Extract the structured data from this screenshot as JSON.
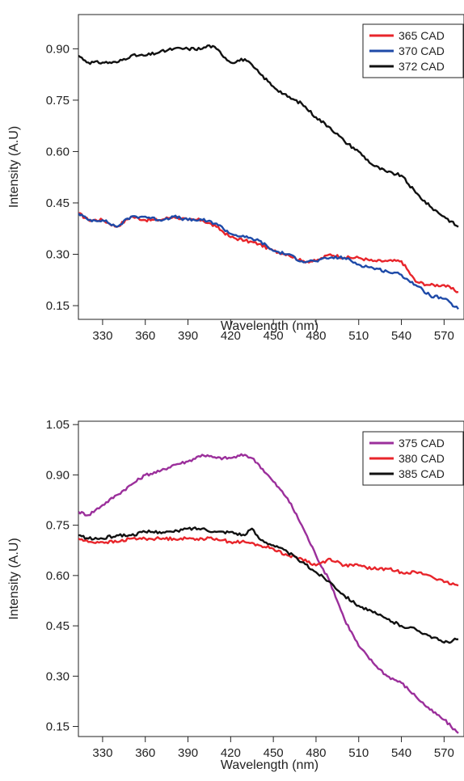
{
  "chart_data": [
    {
      "type": "line",
      "xlabel": "Wavelength (nm)",
      "ylabel": "Intensity (A.U)",
      "xlim": [
        313,
        584
      ],
      "ylim": [
        0.11,
        1.0
      ],
      "x_ticks": [
        "330",
        "360",
        "390",
        "420",
        "450",
        "480",
        "510",
        "540",
        "570"
      ],
      "y_ticks": [
        "0.15",
        "0.30",
        "0.45",
        "0.60",
        "0.75",
        "0.90"
      ],
      "legend_position": "top-right",
      "series": [
        {
          "name": "365 CAD",
          "color": "#e8252b",
          "x": [
            313,
            320,
            330,
            340,
            350,
            360,
            370,
            380,
            390,
            400,
            410,
            420,
            430,
            440,
            450,
            460,
            470,
            480,
            490,
            500,
            510,
            520,
            530,
            540,
            550,
            560,
            570,
            580
          ],
          "y": [
            0.42,
            0.4,
            0.4,
            0.38,
            0.41,
            0.4,
            0.4,
            0.41,
            0.4,
            0.4,
            0.38,
            0.35,
            0.34,
            0.33,
            0.31,
            0.3,
            0.28,
            0.28,
            0.3,
            0.29,
            0.29,
            0.28,
            0.28,
            0.28,
            0.22,
            0.21,
            0.21,
            0.19
          ]
        },
        {
          "name": "370 CAD",
          "color": "#1e4aa8",
          "x": [
            313,
            320,
            330,
            340,
            350,
            360,
            370,
            380,
            390,
            400,
            410,
            420,
            430,
            440,
            450,
            460,
            470,
            480,
            490,
            500,
            510,
            520,
            530,
            540,
            550,
            560,
            570,
            580
          ],
          "y": [
            0.42,
            0.4,
            0.4,
            0.38,
            0.41,
            0.41,
            0.4,
            0.41,
            0.4,
            0.4,
            0.39,
            0.36,
            0.35,
            0.34,
            0.31,
            0.3,
            0.28,
            0.28,
            0.29,
            0.29,
            0.27,
            0.26,
            0.25,
            0.24,
            0.21,
            0.18,
            0.17,
            0.14
          ]
        },
        {
          "name": "372 CAD",
          "color": "#111111",
          "x": [
            313,
            320,
            330,
            340,
            350,
            360,
            370,
            380,
            390,
            400,
            405,
            410,
            420,
            430,
            440,
            450,
            460,
            470,
            480,
            490,
            500,
            510,
            520,
            530,
            540,
            550,
            560,
            570,
            580
          ],
          "y": [
            0.88,
            0.86,
            0.86,
            0.86,
            0.88,
            0.88,
            0.89,
            0.9,
            0.9,
            0.9,
            0.91,
            0.9,
            0.86,
            0.87,
            0.83,
            0.79,
            0.76,
            0.74,
            0.7,
            0.67,
            0.63,
            0.6,
            0.56,
            0.54,
            0.53,
            0.48,
            0.44,
            0.41,
            0.38
          ]
        }
      ]
    },
    {
      "type": "line",
      "xlabel": "Wavelength (nm)",
      "ylabel": "Intensity (A.U)",
      "xlim": [
        313,
        584
      ],
      "ylim": [
        0.12,
        1.06
      ],
      "x_ticks": [
        "330",
        "360",
        "390",
        "420",
        "450",
        "480",
        "510",
        "540",
        "570"
      ],
      "y_ticks": [
        "0.15",
        "0.30",
        "0.45",
        "0.60",
        "0.75",
        "0.90",
        "1.05"
      ],
      "legend_position": "top-right",
      "series": [
        {
          "name": "375 CAD",
          "color": "#9b2f9b",
          "x": [
            313,
            320,
            330,
            340,
            350,
            360,
            370,
            380,
            390,
            400,
            410,
            420,
            430,
            435,
            440,
            450,
            460,
            470,
            480,
            490,
            500,
            510,
            520,
            530,
            540,
            550,
            560,
            570,
            580
          ],
          "y": [
            0.79,
            0.78,
            0.81,
            0.84,
            0.87,
            0.9,
            0.91,
            0.93,
            0.94,
            0.96,
            0.95,
            0.95,
            0.96,
            0.95,
            0.93,
            0.88,
            0.83,
            0.75,
            0.66,
            0.58,
            0.47,
            0.39,
            0.34,
            0.3,
            0.28,
            0.24,
            0.2,
            0.17,
            0.13
          ]
        },
        {
          "name": "380 CAD",
          "color": "#e8252b",
          "x": [
            313,
            320,
            330,
            340,
            350,
            360,
            370,
            380,
            390,
            400,
            410,
            420,
            430,
            440,
            450,
            460,
            470,
            480,
            490,
            500,
            510,
            520,
            530,
            540,
            550,
            560,
            570,
            580
          ],
          "y": [
            0.71,
            0.7,
            0.7,
            0.7,
            0.71,
            0.71,
            0.71,
            0.71,
            0.71,
            0.71,
            0.71,
            0.7,
            0.7,
            0.69,
            0.68,
            0.66,
            0.65,
            0.63,
            0.65,
            0.63,
            0.63,
            0.62,
            0.62,
            0.61,
            0.61,
            0.6,
            0.58,
            0.57
          ]
        },
        {
          "name": "385 CAD",
          "color": "#111111",
          "x": [
            313,
            320,
            330,
            340,
            350,
            360,
            370,
            380,
            390,
            400,
            410,
            420,
            430,
            435,
            440,
            450,
            460,
            470,
            480,
            490,
            500,
            510,
            520,
            530,
            540,
            550,
            560,
            570,
            580
          ],
          "y": [
            0.72,
            0.71,
            0.71,
            0.72,
            0.72,
            0.73,
            0.73,
            0.73,
            0.74,
            0.74,
            0.73,
            0.73,
            0.72,
            0.74,
            0.71,
            0.69,
            0.67,
            0.64,
            0.61,
            0.58,
            0.54,
            0.51,
            0.49,
            0.47,
            0.45,
            0.44,
            0.42,
            0.4,
            0.41
          ]
        }
      ]
    }
  ]
}
